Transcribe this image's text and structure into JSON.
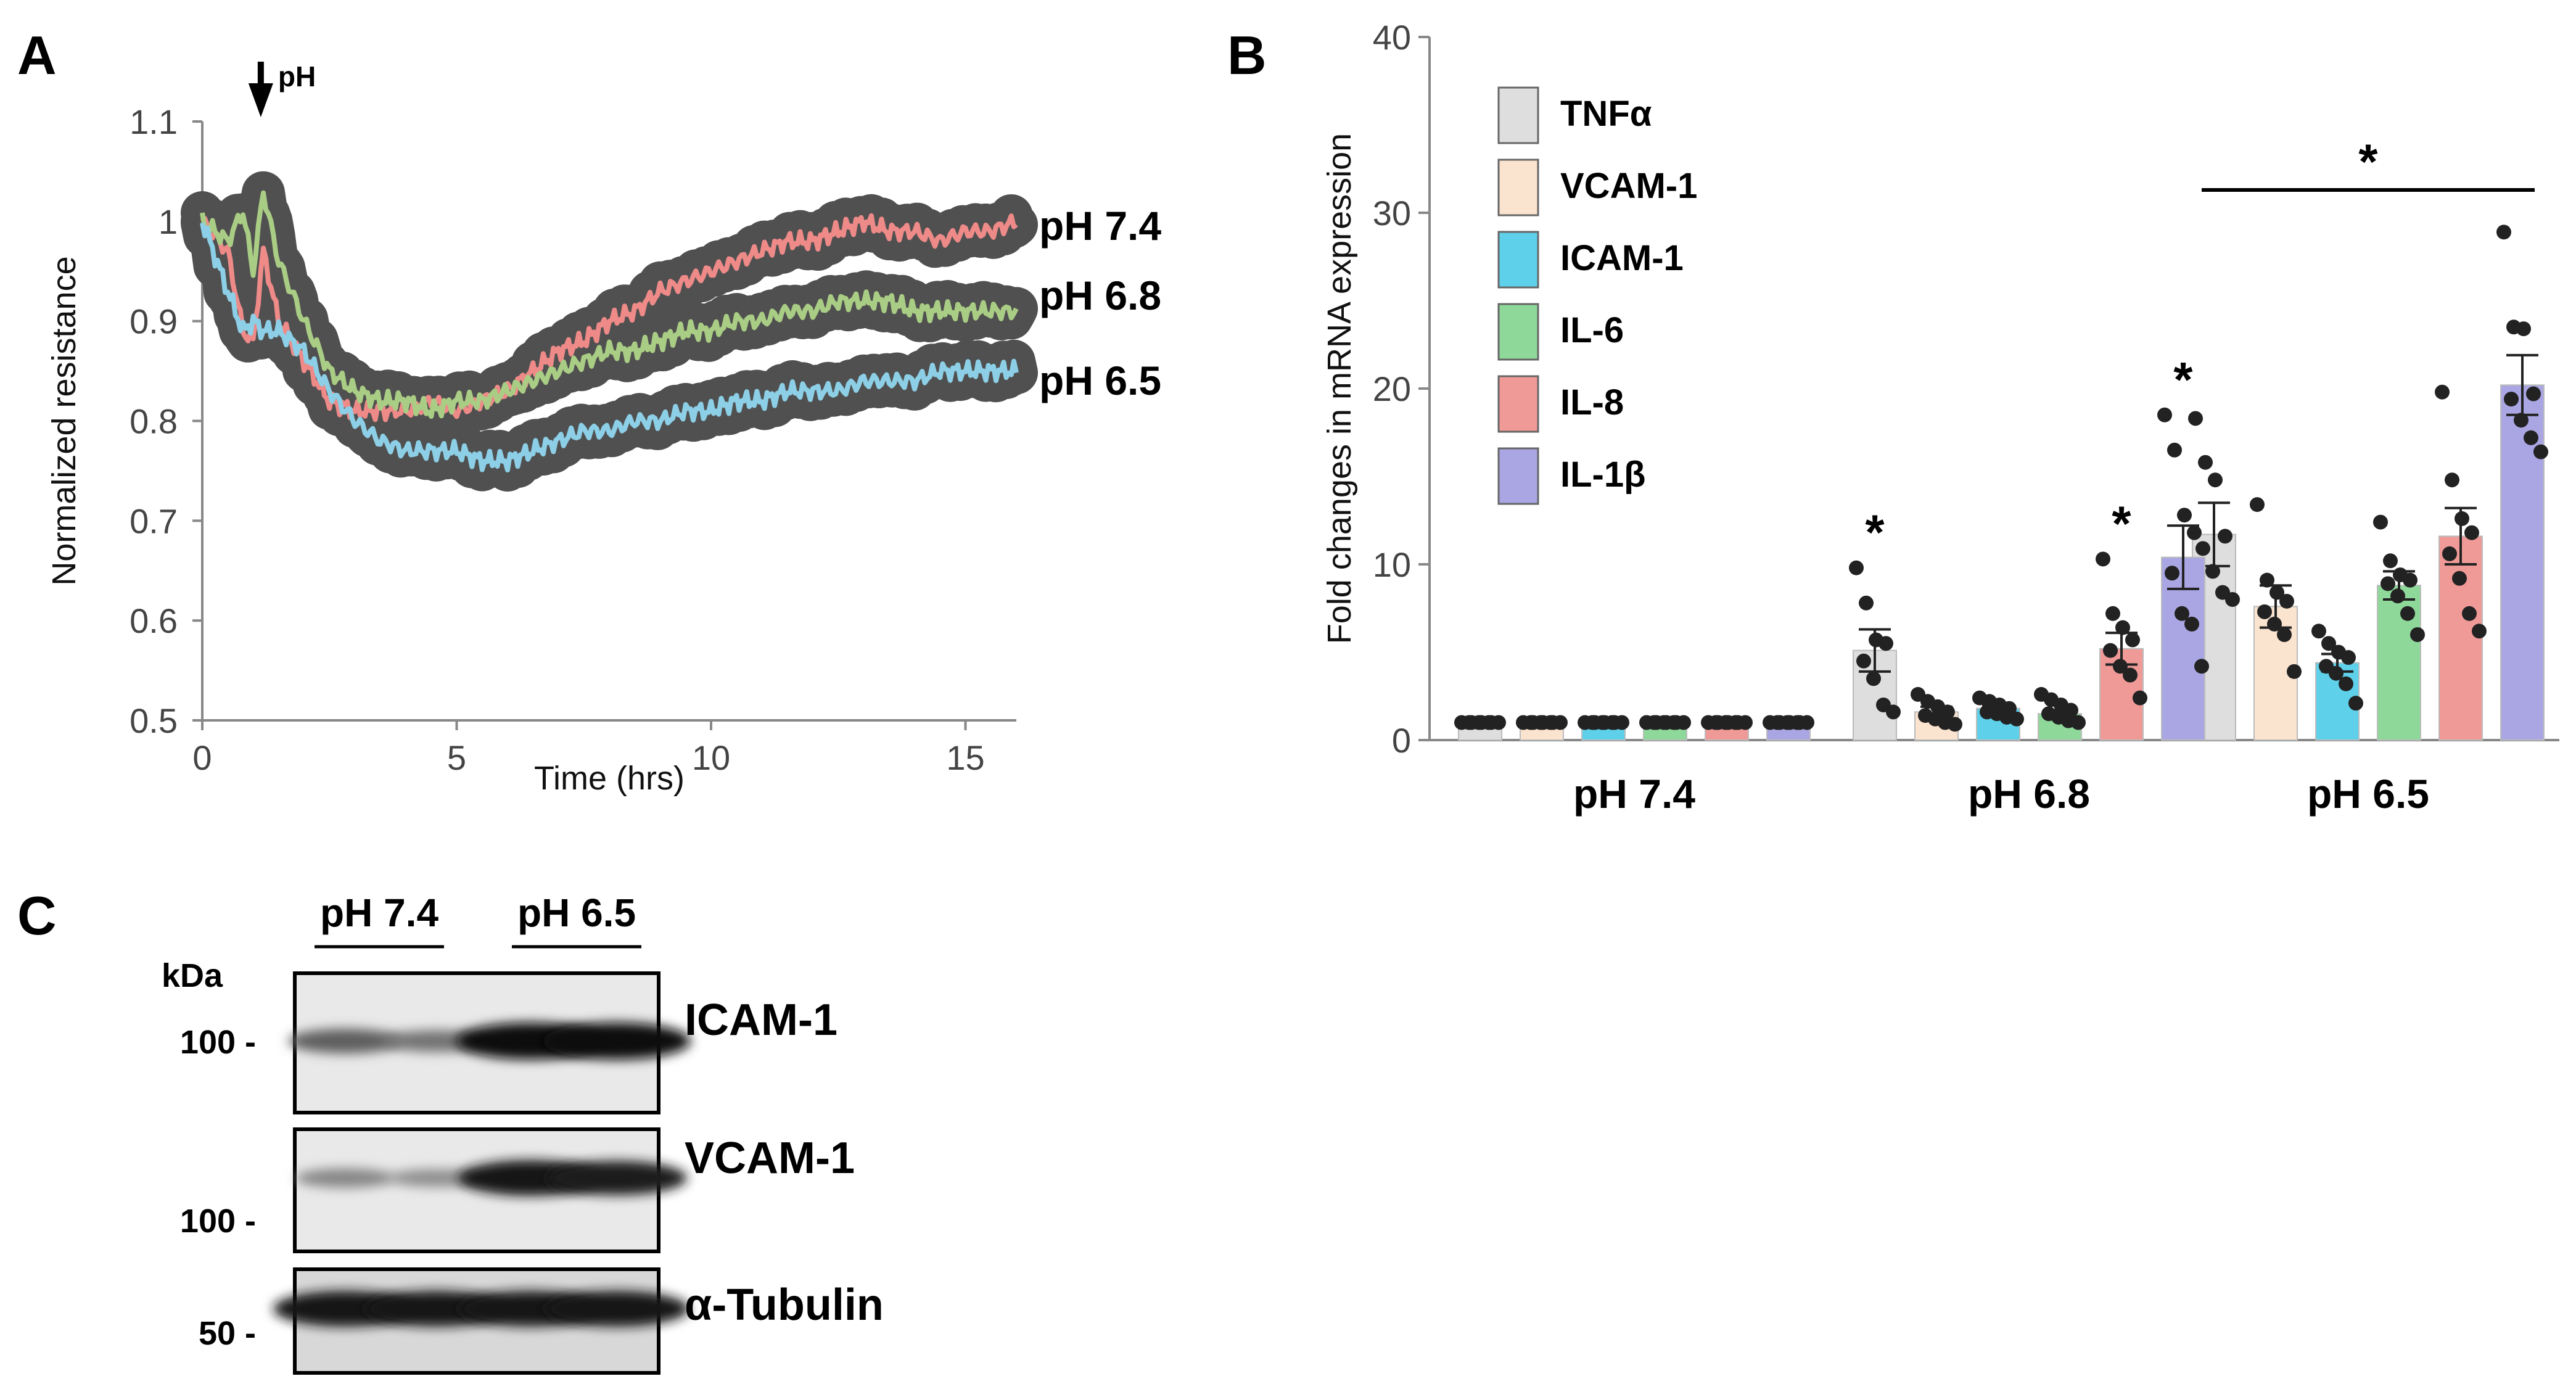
{
  "panels": {
    "a": "A",
    "b": "B",
    "c": "C"
  },
  "colors": {
    "pH 7.4": "#ee8a88",
    "pH 6.8": "#a9cd84",
    "pH 6.5": "#8ccfe6",
    "band": "#505050",
    "TNFα": "#dedede",
    "VCAM-1": "#fbe4cf",
    "ICAM-1": "#5fd0ea",
    "IL-6": "#8ed89a",
    "IL-8": "#f09a98",
    "IL-1β": "#a9a6e3"
  },
  "chart_data": [
    {
      "type": "line",
      "title": "",
      "xlabel": "Time (hrs)",
      "ylabel": "Normalized resistance",
      "xlim": [
        0,
        16
      ],
      "ylim": [
        0.5,
        1.1
      ],
      "xticks": [
        0,
        5,
        10,
        15
      ],
      "yticks": [
        0.5,
        0.6,
        0.7,
        0.8,
        0.9,
        1,
        1.1
      ],
      "annotation": {
        "label": "pH",
        "x": 1.15
      },
      "series": [
        {
          "name": "pH 7.4",
          "x": [
            0,
            0.5,
            0.8,
            1.0,
            1.2,
            1.5,
            2,
            2.5,
            3,
            3.5,
            4,
            4.5,
            5,
            5.5,
            6,
            6.5,
            7,
            7.5,
            8,
            8.5,
            9,
            9.5,
            10,
            10.5,
            11,
            11.5,
            12,
            12.5,
            13,
            13.5,
            14,
            14.5,
            15,
            15.5,
            16
          ],
          "y": [
            1.0,
            0.97,
            0.89,
            0.88,
            0.97,
            0.9,
            0.86,
            0.82,
            0.81,
            0.81,
            0.81,
            0.82,
            0.81,
            0.82,
            0.83,
            0.85,
            0.87,
            0.88,
            0.9,
            0.91,
            0.93,
            0.94,
            0.95,
            0.96,
            0.97,
            0.98,
            0.98,
            0.99,
            1.0,
            0.99,
            0.99,
            0.98,
            0.99,
            0.99,
            1.0
          ]
        },
        {
          "name": "pH 6.8",
          "x": [
            0,
            0.5,
            0.8,
            1.0,
            1.2,
            1.5,
            2,
            2.5,
            3,
            3.5,
            4,
            4.5,
            5,
            5.5,
            6,
            6.5,
            7,
            7.5,
            8,
            8.5,
            9,
            9.5,
            10,
            10.5,
            11,
            11.5,
            12,
            12.5,
            13,
            13.5,
            14,
            14.5,
            15,
            15.5,
            16
          ],
          "y": [
            1.0,
            0.98,
            1.01,
            0.95,
            1.03,
            0.96,
            0.9,
            0.85,
            0.83,
            0.82,
            0.82,
            0.81,
            0.82,
            0.82,
            0.83,
            0.84,
            0.85,
            0.86,
            0.87,
            0.87,
            0.88,
            0.89,
            0.89,
            0.9,
            0.9,
            0.91,
            0.91,
            0.92,
            0.92,
            0.92,
            0.91,
            0.91,
            0.91,
            0.91,
            0.91
          ]
        },
        {
          "name": "pH 6.5",
          "x": [
            0,
            0.5,
            0.8,
            1.0,
            1.2,
            1.5,
            2,
            2.5,
            3,
            3.5,
            4,
            4.5,
            5,
            5.5,
            6,
            6.5,
            7,
            7.5,
            8,
            8.5,
            9,
            9.5,
            10,
            10.5,
            11,
            11.5,
            12,
            12.5,
            13,
            13.5,
            14,
            14.5,
            15,
            15.5,
            16
          ],
          "y": [
            1.0,
            0.93,
            0.89,
            0.9,
            0.89,
            0.89,
            0.87,
            0.83,
            0.8,
            0.78,
            0.77,
            0.77,
            0.77,
            0.76,
            0.76,
            0.77,
            0.78,
            0.79,
            0.79,
            0.8,
            0.8,
            0.81,
            0.81,
            0.82,
            0.82,
            0.83,
            0.83,
            0.83,
            0.84,
            0.84,
            0.84,
            0.85,
            0.85,
            0.85,
            0.85
          ]
        }
      ]
    },
    {
      "type": "bar",
      "title": "",
      "xlabel": "",
      "ylabel": "Fold changes in mRNA expression",
      "ylim": [
        0,
        40
      ],
      "yticks": [
        0,
        10,
        20,
        30,
        40
      ],
      "categories": [
        "pH 7.4",
        "pH 6.8",
        "pH 6.5"
      ],
      "legend_position": "top-left",
      "series": [
        {
          "name": "TNFα",
          "values": [
            1,
            5.1,
            11.7
          ],
          "sem": [
            0.1,
            1.2,
            1.8
          ],
          "points": [
            [
              1,
              1,
              1,
              1,
              1,
              1,
              1,
              1
            ],
            [
              9.8,
              7.8,
              5.7,
              5.5,
              4.5,
              3.5,
              2.0,
              1.6
            ],
            [
              18.3,
              15.8,
              14.8,
              11.6,
              10.9,
              9.6,
              8.4,
              8.0
            ]
          ]
        },
        {
          "name": "VCAM-1",
          "values": [
            1,
            1.6,
            7.6
          ],
          "sem": [
            0.1,
            0.3,
            1.2
          ],
          "points": [
            [
              1,
              1,
              1,
              1,
              1,
              1,
              1,
              1
            ],
            [
              2.6,
              2.2,
              1.9,
              1.6,
              1.4,
              1.2,
              1.0,
              0.9
            ],
            [
              13.4,
              9.1,
              8.4,
              7.9,
              7.3,
              6.6,
              6.0,
              3.9
            ]
          ]
        },
        {
          "name": "ICAM-1",
          "values": [
            1,
            1.8,
            4.4
          ],
          "sem": [
            0.1,
            0.2,
            0.5
          ],
          "points": [
            [
              1,
              1,
              1,
              1,
              1,
              1,
              1,
              1
            ],
            [
              2.4,
              2.2,
              2.0,
              1.8,
              1.6,
              1.5,
              1.3,
              1.2
            ],
            [
              6.2,
              5.5,
              5.0,
              4.7,
              4.2,
              3.8,
              3.2,
              2.1
            ]
          ]
        },
        {
          "name": "IL-6",
          "values": [
            1,
            1.5,
            8.8
          ],
          "sem": [
            0.1,
            0.2,
            0.8
          ],
          "points": [
            [
              1,
              1,
              1,
              1,
              1,
              1,
              1,
              1
            ],
            [
              2.6,
              2.3,
              2.0,
              1.7,
              1.5,
              1.3,
              1.1,
              1.0
            ],
            [
              12.4,
              10.2,
              9.4,
              9.1,
              8.9,
              8.2,
              7.2,
              6.0
            ]
          ]
        },
        {
          "name": "IL-8",
          "values": [
            1,
            5.2,
            11.6
          ],
          "sem": [
            0.1,
            0.9,
            1.6
          ],
          "points": [
            [
              1,
              1,
              1,
              1,
              1,
              1,
              1,
              1
            ],
            [
              10.3,
              7.2,
              6.4,
              5.7,
              5.1,
              4.2,
              3.7,
              2.4
            ],
            [
              19.8,
              14.8,
              12.6,
              11.8,
              10.6,
              9.2,
              7.2,
              6.2
            ]
          ]
        },
        {
          "name": "IL-1β",
          "values": [
            1,
            10.4,
            20.2
          ],
          "sem": [
            0.1,
            1.8,
            1.7
          ],
          "points": [
            [
              1,
              1,
              1,
              1,
              1,
              1,
              1,
              1
            ],
            [
              18.5,
              16.5,
              12.8,
              11.8,
              9.5,
              7.2,
              6.6,
              4.2
            ],
            [
              28.9,
              23.5,
              23.4,
              19.7,
              19.4,
              18.2,
              17.2,
              16.4
            ]
          ]
        }
      ],
      "significance": [
        {
          "label": "*",
          "category": "pH 6.8",
          "series": "TNFα"
        },
        {
          "label": "*",
          "category": "pH 6.8",
          "series": "IL-8"
        },
        {
          "label": "*",
          "category": "pH 6.8",
          "series": "IL-1β"
        },
        {
          "label": "*",
          "category": "pH 6.5",
          "span": "all"
        }
      ]
    }
  ],
  "western_blot": {
    "groups": [
      "pH 7.4",
      "pH 6.5"
    ],
    "unit": "kDa",
    "rows": [
      {
        "protein": "ICAM-1",
        "marker": "100 -",
        "intensities": [
          0.55,
          0.45,
          1.0,
          1.0
        ]
      },
      {
        "protein": "VCAM-1",
        "marker": "100 -",
        "intensities": [
          0.35,
          0.3,
          0.95,
          0.9
        ]
      },
      {
        "protein": "α-Tubulin",
        "marker": "50 -",
        "intensities": [
          0.95,
          0.95,
          0.95,
          0.95
        ]
      }
    ]
  }
}
